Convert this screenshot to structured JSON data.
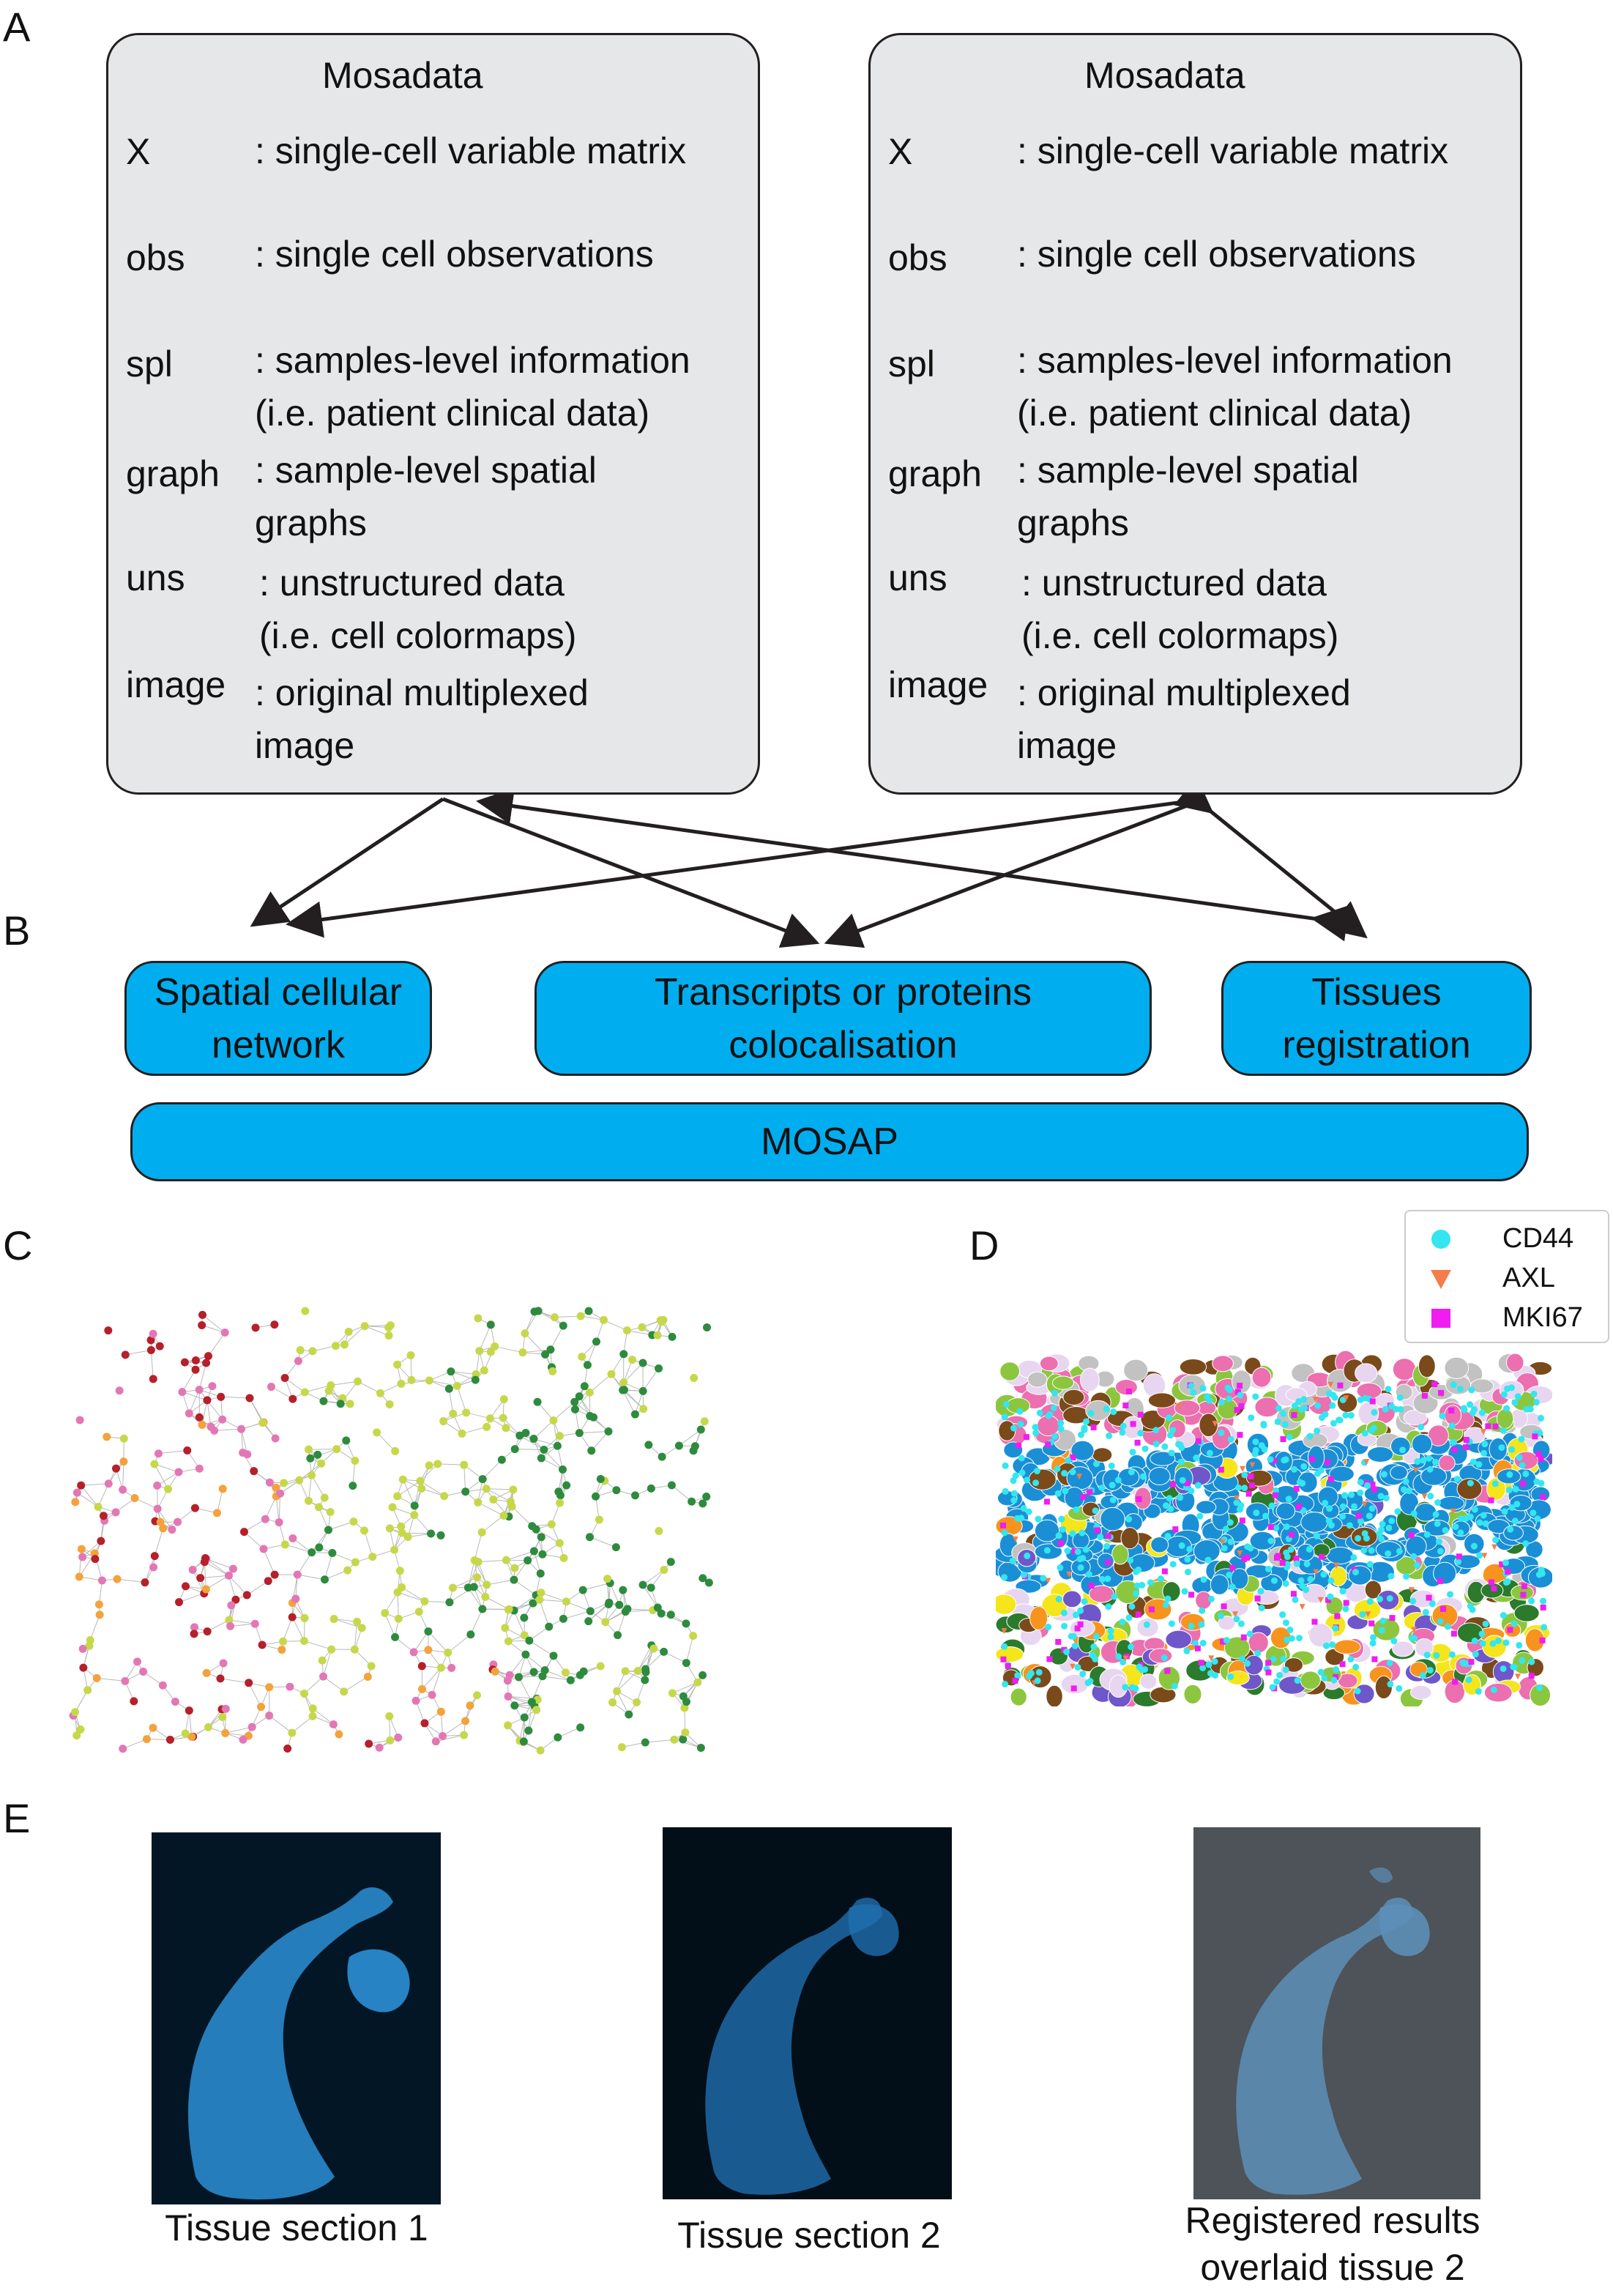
{
  "panel_labels": {
    "a": "A",
    "b": "B",
    "c": "C",
    "d": "D",
    "e": "E"
  },
  "mosadata_left": {
    "title": "Mosadata",
    "rows": [
      {
        "key": "X",
        "desc": ": single-cell variable matrix"
      },
      {
        "key": "obs",
        "desc": ": single cell observations"
      },
      {
        "key": "spl",
        "desc": ": samples-level information\n(i.e. patient clinical data)"
      },
      {
        "key": "graph",
        "desc": ": sample-level spatial\ngraphs"
      },
      {
        "key": "uns",
        "desc": ": unstructured data\n(i.e. cell colormaps)"
      },
      {
        "key": "image",
        "desc": ": original multiplexed\nimage"
      }
    ]
  },
  "mosadata_right": {
    "title": "Mosadata",
    "rows": [
      {
        "key": "X",
        "desc": ": single-cell variable matrix"
      },
      {
        "key": "obs",
        "desc": ": single cell observations"
      },
      {
        "key": "spl",
        "desc": ": samples-level information\n(i.e. patient clinical data)"
      },
      {
        "key": "graph",
        "desc": ": sample-level spatial\ngraphs"
      },
      {
        "key": "uns",
        "desc": ": unstructured data\n(i.e. cell colormaps)"
      },
      {
        "key": "image",
        "desc": ": original multiplexed\nimage"
      }
    ]
  },
  "modules": {
    "spatial": "Spatial cellular\nnetwork",
    "colocalisation": "Transcripts or proteins\ncolocalisation",
    "registration": "Tissues\nregistration",
    "mosap": "MOSAP"
  },
  "legend_d": [
    {
      "label": "CD44",
      "color": "#33e6f0",
      "marker": "circle"
    },
    {
      "label": "AXL",
      "color": "#f47d4a",
      "marker": "triangle"
    },
    {
      "label": "MKI67",
      "color": "#f01df0",
      "marker": "square"
    }
  ],
  "captions": {
    "tissue1": "Tissue section 1",
    "tissue2": "Tissue section 2",
    "registered": "Registered results\noverlaid tissue 2"
  },
  "colors": {
    "box_fill": "#e6e7e8",
    "module_fill": "#00aeef",
    "tissue_blue": "#2b8fd6",
    "network_colors": [
      "#b5202a",
      "#e377b5",
      "#c6d84a",
      "#2e8b3e",
      "#f4a23b"
    ]
  }
}
